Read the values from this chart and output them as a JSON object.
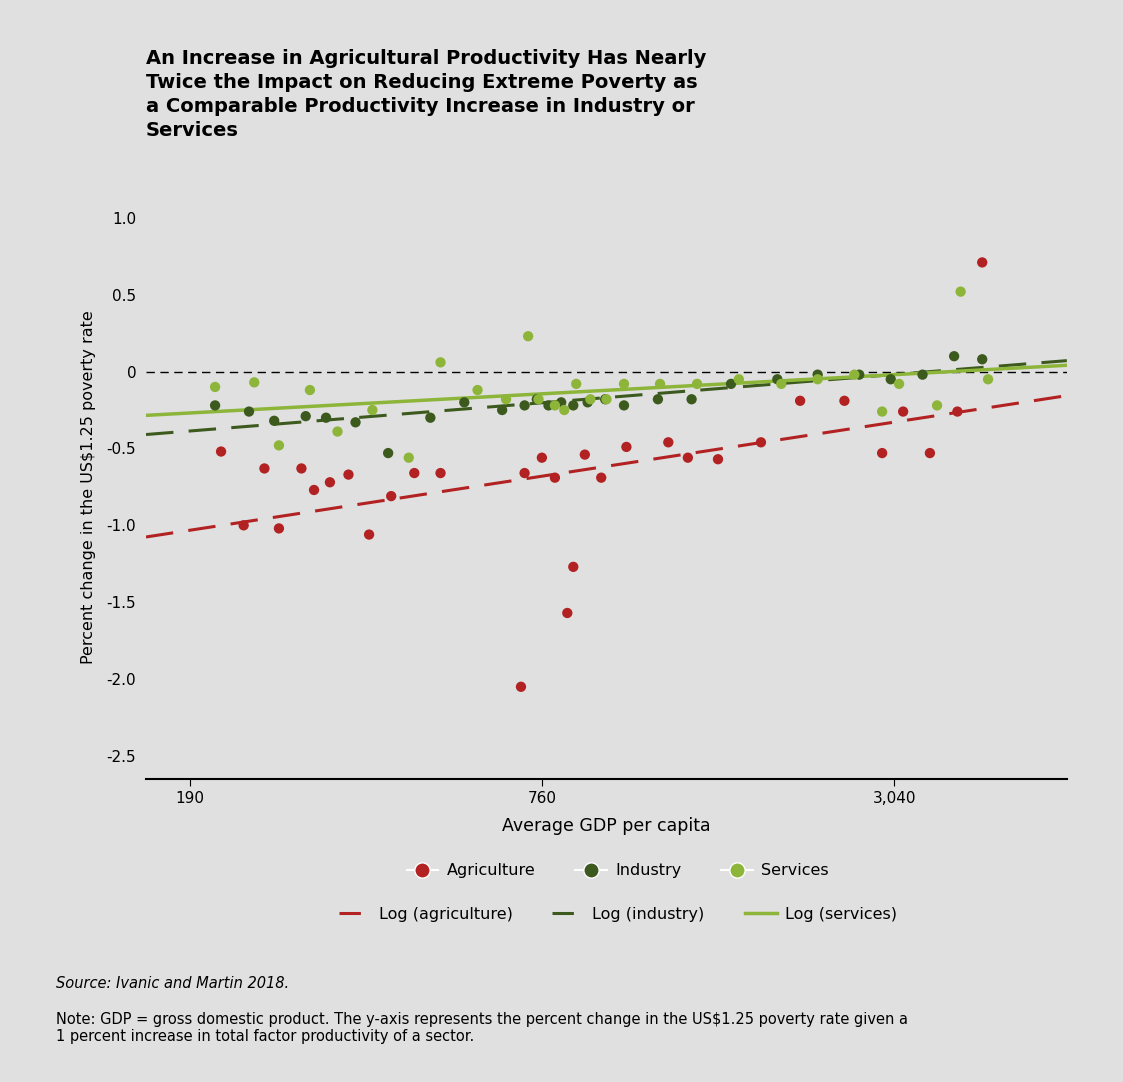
{
  "title": "An Increase in Agricultural Productivity Has Nearly\nTwice the Impact on Reducing Extreme Poverty as\na Comparable Productivity Increase in Industry or\nServices",
  "xlabel": "Average GDP per capita",
  "ylabel": "Percent change in the US$1.25 poverty rate",
  "background_color": "#e0e0e0",
  "source_text": "Source: Ivanic and Martin 2018.",
  "note_text": "Note: GDP = gross domestic product. The y-axis represents the percent change in the US$1.25 poverty rate given a\n1 percent increase in total factor productivity of a sector.",
  "agri_color": "#b22222",
  "industry_color": "#3d5a1e",
  "services_color": "#8db53a",
  "xticks": [
    190,
    760,
    3040
  ],
  "xlim_log": [
    160,
    6000
  ],
  "ylim": [
    -2.65,
    1.15
  ],
  "yticks": [
    -2.5,
    -2.0,
    -1.5,
    -1.0,
    -0.5,
    0.0,
    0.5,
    1.0
  ],
  "agri_x": [
    215,
    235,
    255,
    270,
    295,
    310,
    330,
    355,
    385,
    420,
    460,
    510,
    700,
    710,
    760,
    800,
    840,
    860,
    900,
    960,
    1060,
    1250,
    1350,
    1520,
    1800,
    2100,
    2500,
    2900,
    3150,
    3500,
    3900,
    4300
  ],
  "agri_y": [
    -0.52,
    -1.0,
    -0.63,
    -1.02,
    -0.63,
    -0.77,
    -0.72,
    -0.67,
    -1.06,
    -0.81,
    -0.66,
    -0.66,
    -2.05,
    -0.66,
    -0.56,
    -0.69,
    -1.57,
    -1.27,
    -0.54,
    -0.69,
    -0.49,
    -0.46,
    -0.56,
    -0.57,
    -0.46,
    -0.19,
    -0.19,
    -0.53,
    -0.26,
    -0.53,
    -0.26,
    0.71
  ],
  "industry_x": [
    210,
    240,
    265,
    300,
    325,
    365,
    415,
    490,
    560,
    650,
    710,
    745,
    780,
    820,
    860,
    910,
    975,
    1050,
    1200,
    1370,
    1600,
    1920,
    2250,
    2650,
    3000,
    3400,
    3850,
    4300
  ],
  "industry_y": [
    -0.22,
    -0.26,
    -0.32,
    -0.29,
    -0.3,
    -0.33,
    -0.53,
    -0.3,
    -0.2,
    -0.25,
    -0.22,
    -0.18,
    -0.22,
    -0.2,
    -0.22,
    -0.2,
    -0.18,
    -0.22,
    -0.18,
    -0.18,
    -0.08,
    -0.05,
    -0.02,
    -0.02,
    -0.05,
    -0.02,
    0.1,
    0.08
  ],
  "services_x": [
    210,
    245,
    270,
    305,
    340,
    390,
    450,
    510,
    590,
    660,
    720,
    750,
    800,
    830,
    870,
    920,
    980,
    1050,
    1210,
    1400,
    1650,
    1950,
    2250,
    2600,
    2900,
    3100,
    3600,
    3950,
    4400
  ],
  "services_y": [
    -0.1,
    -0.07,
    -0.48,
    -0.12,
    -0.39,
    -0.25,
    -0.56,
    0.06,
    -0.12,
    -0.18,
    0.23,
    -0.18,
    -0.22,
    -0.25,
    -0.08,
    -0.18,
    -0.18,
    -0.08,
    -0.08,
    -0.08,
    -0.05,
    -0.08,
    -0.05,
    -0.02,
    -0.26,
    -0.08,
    -0.22,
    0.52,
    -0.05
  ],
  "agri_line_color": "#b22222",
  "industry_line_color": "#3d5a1e",
  "services_line_color": "#8db53a"
}
